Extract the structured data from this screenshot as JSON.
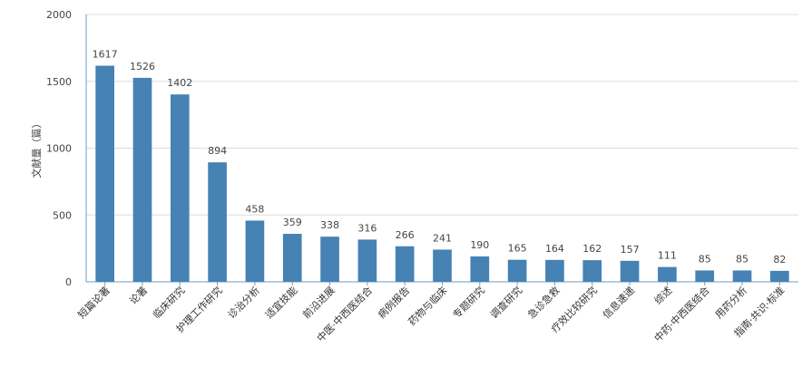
{
  "chart_data": {
    "type": "bar",
    "title": "",
    "xlabel": "",
    "ylabel": "文献量（篇）",
    "ylim": [
      0,
      2000
    ],
    "yticks": [
      0,
      500,
      1000,
      1500,
      2000
    ],
    "grid": true,
    "legend": "none",
    "bar_color": "#4682b4",
    "grid_color": "#dddddd",
    "axis_color": "#6b9bc8",
    "categories": [
      "短篇论著",
      "论著",
      "临床研究",
      "护理工作研究",
      "诊治分析",
      "适宜技能",
      "前沿进展",
      "中医·中西医结合",
      "病例报告",
      "药物与临床",
      "专题研究",
      "调查研究",
      "急诊急救",
      "疗效比较研究",
      "信息速递",
      "综述",
      "中药·中西医结合",
      "用药分析",
      "指南·共识·标准"
    ],
    "values": [
      1617,
      1526,
      1402,
      894,
      458,
      359,
      338,
      316,
      266,
      241,
      190,
      165,
      164,
      162,
      157,
      111,
      85,
      85,
      82
    ]
  }
}
